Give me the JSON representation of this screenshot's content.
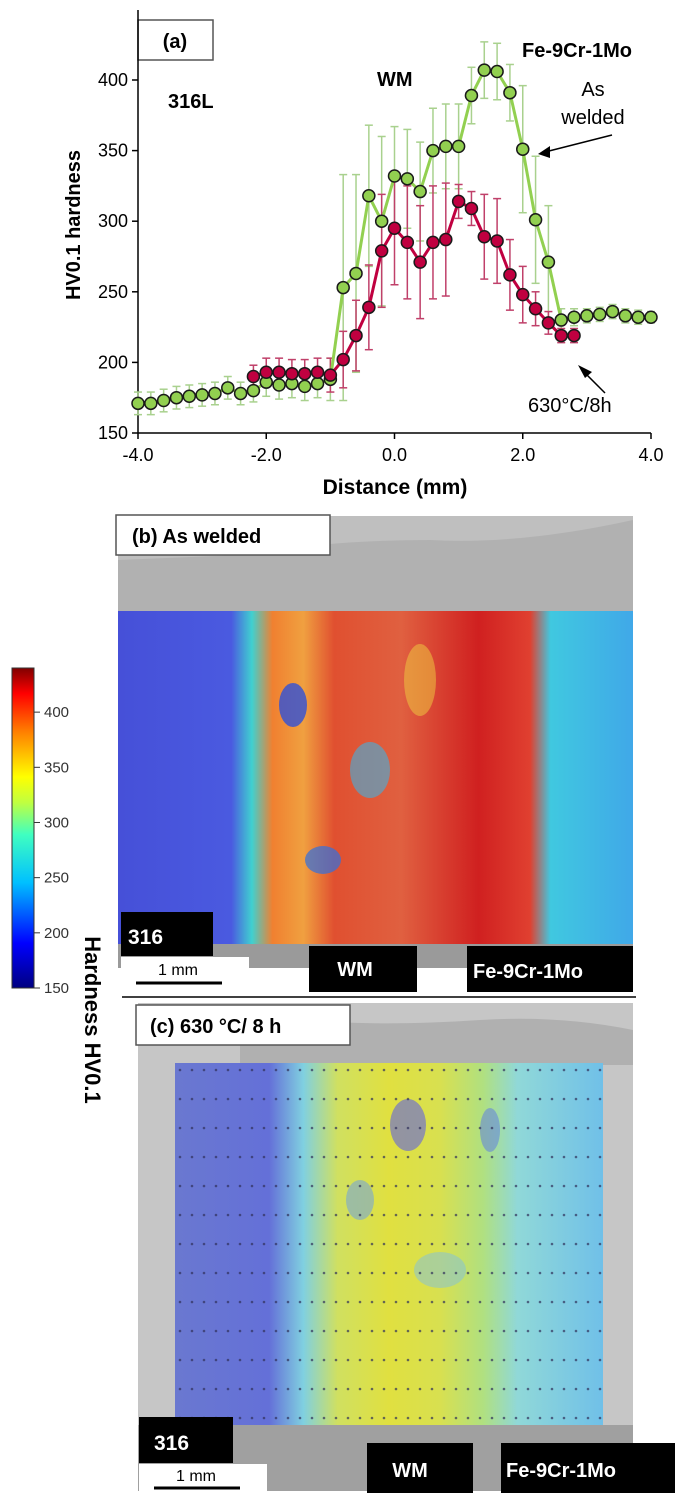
{
  "panel_a": {
    "label": "(a)",
    "annotations": {
      "left_material": "316L",
      "weld_metal": "WM",
      "right_material": "Fe-9Cr-1Mo",
      "as_welded_line1": "As",
      "as_welded_line2": "welded",
      "pwht": "630°C/8h"
    }
  },
  "chart_data": {
    "type": "scatter",
    "xlabel": "Distance (mm)",
    "ylabel": "HV0.1 hardness",
    "xlim": [
      -4.0,
      4.0
    ],
    "ylim": [
      150,
      420
    ],
    "xticks": [
      "-4.0",
      "-2.0",
      "0.0",
      "2.0",
      "4.0"
    ],
    "yticks": [
      "150",
      "200",
      "250",
      "300",
      "350",
      "400"
    ],
    "grid": false,
    "series": [
      {
        "name": "As welded",
        "color": "#92d050",
        "err_color": "#a9d18e",
        "points": [
          {
            "x": -4.0,
            "y": 171,
            "err": 8
          },
          {
            "x": -3.8,
            "y": 171,
            "err": 8
          },
          {
            "x": -3.6,
            "y": 173,
            "err": 8
          },
          {
            "x": -3.4,
            "y": 175,
            "err": 8
          },
          {
            "x": -3.2,
            "y": 176,
            "err": 8
          },
          {
            "x": -3.0,
            "y": 177,
            "err": 8
          },
          {
            "x": -2.8,
            "y": 178,
            "err": 8
          },
          {
            "x": -2.6,
            "y": 182,
            "err": 8
          },
          {
            "x": -2.4,
            "y": 178,
            "err": 8
          },
          {
            "x": -2.2,
            "y": 180,
            "err": 8
          },
          {
            "x": -2.0,
            "y": 186,
            "err": 10
          },
          {
            "x": -1.8,
            "y": 184,
            "err": 10
          },
          {
            "x": -1.6,
            "y": 185,
            "err": 10
          },
          {
            "x": -1.4,
            "y": 183,
            "err": 10
          },
          {
            "x": -1.2,
            "y": 185,
            "err": 10
          },
          {
            "x": -1.0,
            "y": 188,
            "err": 15
          },
          {
            "x": -0.8,
            "y": 253,
            "err": 80
          },
          {
            "x": -0.6,
            "y": 263,
            "err": 70
          },
          {
            "x": -0.4,
            "y": 318,
            "err": 50
          },
          {
            "x": -0.2,
            "y": 300,
            "err": 60
          },
          {
            "x": 0.0,
            "y": 332,
            "err": 35
          },
          {
            "x": 0.2,
            "y": 330,
            "err": 35
          },
          {
            "x": 0.4,
            "y": 321,
            "err": 35
          },
          {
            "x": 0.6,
            "y": 350,
            "err": 30
          },
          {
            "x": 0.8,
            "y": 353,
            "err": 30
          },
          {
            "x": 1.0,
            "y": 353,
            "err": 30
          },
          {
            "x": 1.2,
            "y": 389,
            "err": 20
          },
          {
            "x": 1.4,
            "y": 407,
            "err": 20
          },
          {
            "x": 1.6,
            "y": 406,
            "err": 20
          },
          {
            "x": 1.8,
            "y": 391,
            "err": 20
          },
          {
            "x": 2.0,
            "y": 351,
            "err": 45
          },
          {
            "x": 2.2,
            "y": 301,
            "err": 45
          },
          {
            "x": 2.4,
            "y": 271,
            "err": 40
          },
          {
            "x": 2.6,
            "y": 230,
            "err": 8
          },
          {
            "x": 2.8,
            "y": 232,
            "err": 6
          },
          {
            "x": 3.0,
            "y": 233,
            "err": 5
          },
          {
            "x": 3.2,
            "y": 234,
            "err": 5
          },
          {
            "x": 3.4,
            "y": 236,
            "err": 5
          },
          {
            "x": 3.6,
            "y": 233,
            "err": 5
          },
          {
            "x": 3.8,
            "y": 232,
            "err": 5
          },
          {
            "x": 4.0,
            "y": 232,
            "err": 4
          }
        ]
      },
      {
        "name": "630°C/8h",
        "color": "#c00040",
        "err_color": "#c0406a",
        "points": [
          {
            "x": -2.2,
            "y": 190,
            "err": 8
          },
          {
            "x": -2.0,
            "y": 193,
            "err": 10
          },
          {
            "x": -1.8,
            "y": 193,
            "err": 10
          },
          {
            "x": -1.6,
            "y": 192,
            "err": 10
          },
          {
            "x": -1.4,
            "y": 192,
            "err": 10
          },
          {
            "x": -1.2,
            "y": 193,
            "err": 10
          },
          {
            "x": -1.0,
            "y": 191,
            "err": 12
          },
          {
            "x": -0.8,
            "y": 202,
            "err": 20
          },
          {
            "x": -0.6,
            "y": 219,
            "err": 25
          },
          {
            "x": -0.4,
            "y": 239,
            "err": 30
          },
          {
            "x": -0.2,
            "y": 279,
            "err": 40
          },
          {
            "x": 0.0,
            "y": 295,
            "err": 40
          },
          {
            "x": 0.2,
            "y": 285,
            "err": 40
          },
          {
            "x": 0.4,
            "y": 271,
            "err": 40
          },
          {
            "x": 0.6,
            "y": 285,
            "err": 40
          },
          {
            "x": 0.8,
            "y": 287,
            "err": 40
          },
          {
            "x": 1.0,
            "y": 314,
            "err": 12
          },
          {
            "x": 1.2,
            "y": 309,
            "err": 12
          },
          {
            "x": 1.4,
            "y": 289,
            "err": 30
          },
          {
            "x": 1.6,
            "y": 286,
            "err": 30
          },
          {
            "x": 1.8,
            "y": 262,
            "err": 25
          },
          {
            "x": 2.0,
            "y": 248,
            "err": 20
          },
          {
            "x": 2.2,
            "y": 238,
            "err": 12
          },
          {
            "x": 2.4,
            "y": 228,
            "err": 8
          },
          {
            "x": 2.6,
            "y": 219,
            "err": 5
          },
          {
            "x": 2.8,
            "y": 219,
            "err": 5
          }
        ]
      }
    ]
  },
  "panel_b": {
    "label": "(b) As welded",
    "left_label": "316",
    "center_label": "WM",
    "right_label": "Fe-9Cr-1Mo",
    "scale_bar": "1 mm"
  },
  "panel_c": {
    "label": "(c) 630 °C/ 8 h",
    "left_label": "316",
    "center_label": "WM",
    "right_label": "Fe-9Cr-1Mo",
    "scale_bar": "1 mm"
  },
  "colorbar": {
    "title": "Hardness HV0.1",
    "ticks": [
      "150",
      "200",
      "250",
      "300",
      "350",
      "400"
    ],
    "min": 150,
    "max": 440
  }
}
